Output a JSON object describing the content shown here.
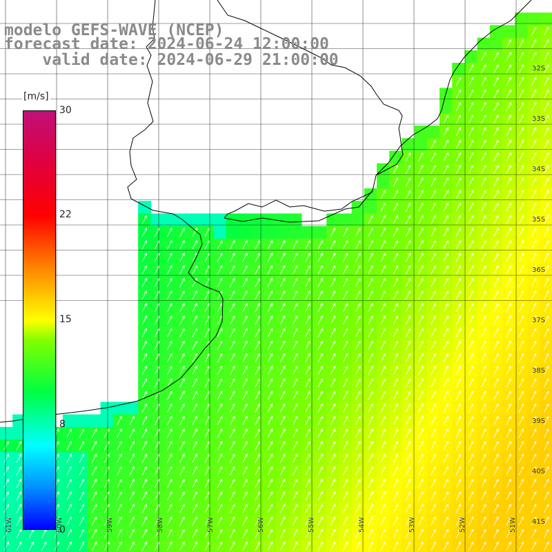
{
  "title": {
    "line1": "modelo GEFS-WAVE (NCEP)",
    "line2": "forecast date: 2024-06-24 12:00:00",
    "line3": "valid date: 2024-06-29 21:00:00"
  },
  "colorbar": {
    "unit": "[m/s]",
    "min": 0,
    "max": 30,
    "ticks": [
      "0",
      "8",
      "15",
      "22",
      "30"
    ]
  },
  "latitude_labels": [
    "32S",
    "33S",
    "34S",
    "35S",
    "36S",
    "37S",
    "38S",
    "39S",
    "40S",
    "41S"
  ],
  "longitude_labels": [
    "61W",
    "60W",
    "59W",
    "58W",
    "57W",
    "56W",
    "55W",
    "54W",
    "53W",
    "52W",
    "51W"
  ],
  "colors": {
    "coast": "#000000",
    "grid": "#000000",
    "arrows": "#ffffff",
    "title": "#8a8a8a"
  }
}
